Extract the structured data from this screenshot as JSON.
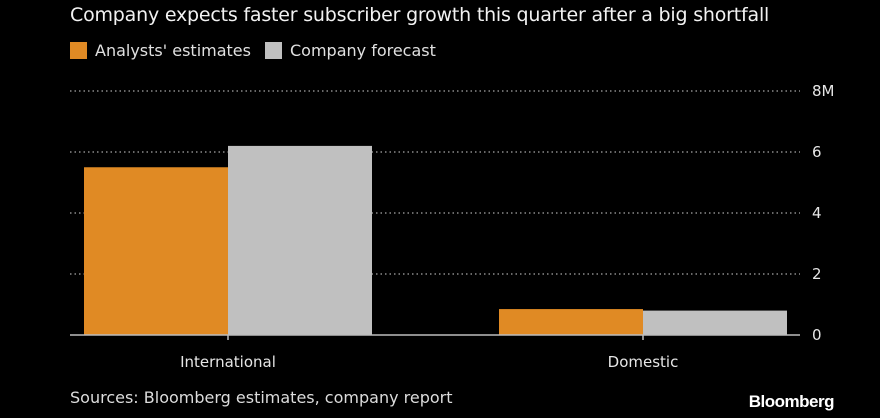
{
  "chart_data": {
    "type": "bar",
    "title": "Company expects faster subscriber growth this quarter after a big shortfall",
    "categories": [
      "International",
      "Domestic"
    ],
    "series": [
      {
        "name": "Analysts' estimates",
        "values": [
          5.5,
          0.85
        ],
        "color": "#e08a24"
      },
      {
        "name": "Company forecast",
        "values": [
          6.2,
          0.8
        ],
        "color": "#c0c0c0"
      }
    ],
    "y_ticks": [
      {
        "value": 0,
        "label": "0"
      },
      {
        "value": 2,
        "label": "2"
      },
      {
        "value": 4,
        "label": "4"
      },
      {
        "value": 6,
        "label": "6"
      },
      {
        "value": 8,
        "label": "8M"
      }
    ],
    "ylim": [
      0,
      8
    ],
    "grid": true,
    "legend_position": "top-left",
    "source": "Sources: Bloomberg estimates, company report",
    "brand": "Bloomberg"
  }
}
